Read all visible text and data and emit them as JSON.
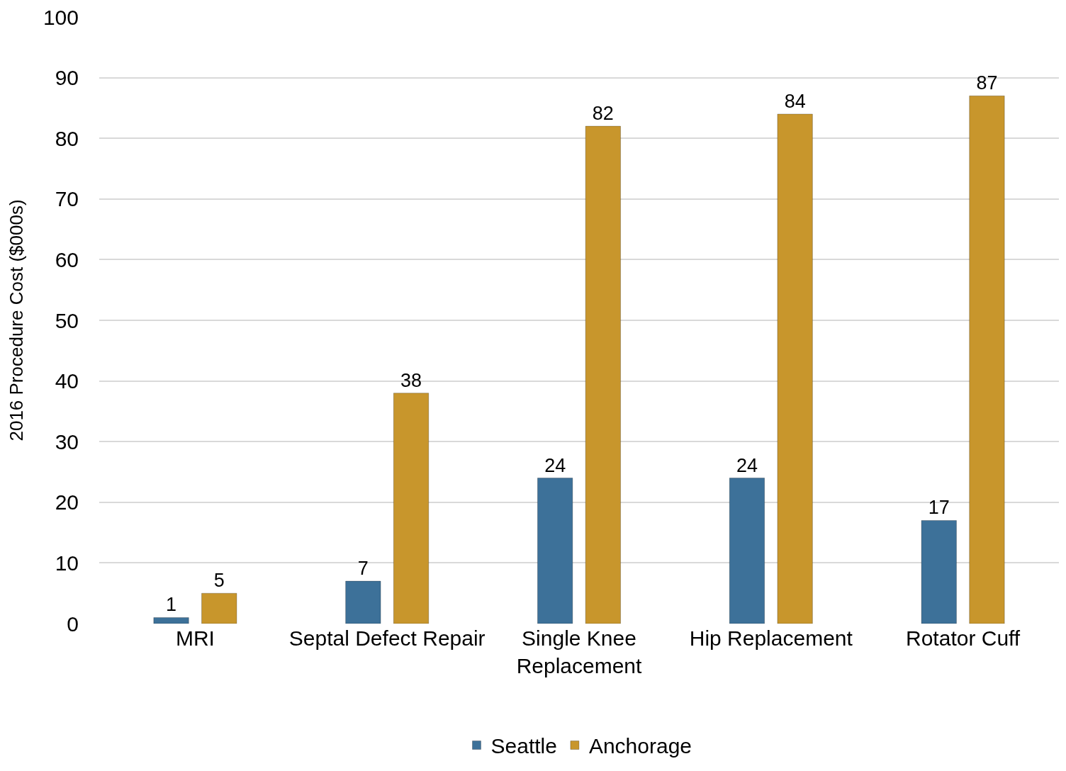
{
  "chart_data": {
    "type": "bar",
    "ylabel": "2016 Procedure Cost ($000s)",
    "categories": [
      "MRI",
      "Septal Defect Repair",
      "Single Knee Replacement",
      "Hip Replacement",
      "Rotator Cuff"
    ],
    "series": [
      {
        "name": "Seattle",
        "color": "#3d7199",
        "values": [
          1,
          7,
          24,
          24,
          17
        ]
      },
      {
        "name": "Anchorage",
        "color": "#c8962c",
        "values": [
          5,
          38,
          82,
          84,
          87
        ]
      }
    ],
    "ylim": [
      0,
      100
    ],
    "yticks": [
      0,
      10,
      20,
      30,
      40,
      50,
      60,
      70,
      80,
      90,
      100
    ],
    "grid": "y",
    "legend": "bottom",
    "data_labels": true
  }
}
